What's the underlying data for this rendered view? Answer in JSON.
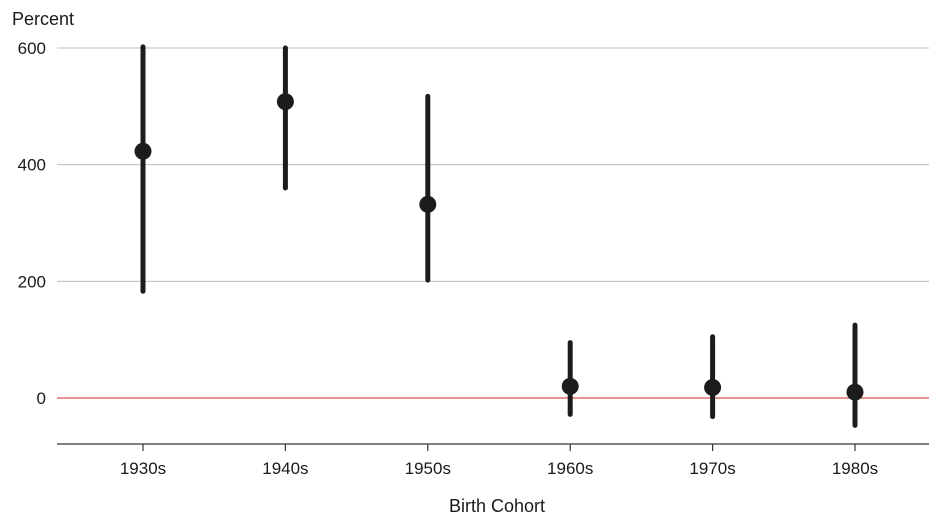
{
  "chart_data": {
    "type": "scatter",
    "style": "point-range",
    "ylabel": "Percent",
    "xlabel": "Birth Cohort",
    "categories": [
      "1930s",
      "1940s",
      "1950s",
      "1960s",
      "1970s",
      "1980s"
    ],
    "series": [
      {
        "values": [
          423,
          508,
          332,
          20,
          18,
          10
        ],
        "lower": [
          183,
          360,
          202,
          -28,
          -32,
          -47
        ],
        "upper": [
          602,
          600,
          517,
          95,
          105,
          125
        ]
      }
    ],
    "yticks": [
      0,
      200,
      400,
      600
    ],
    "ylim": [
      -80,
      610
    ],
    "grid": true,
    "reference_line": 0,
    "colors": {
      "points": "#1c1c1c",
      "gridlines": "#bdbdbd",
      "reference_line": "#d9534f",
      "axis": "#333333"
    }
  }
}
